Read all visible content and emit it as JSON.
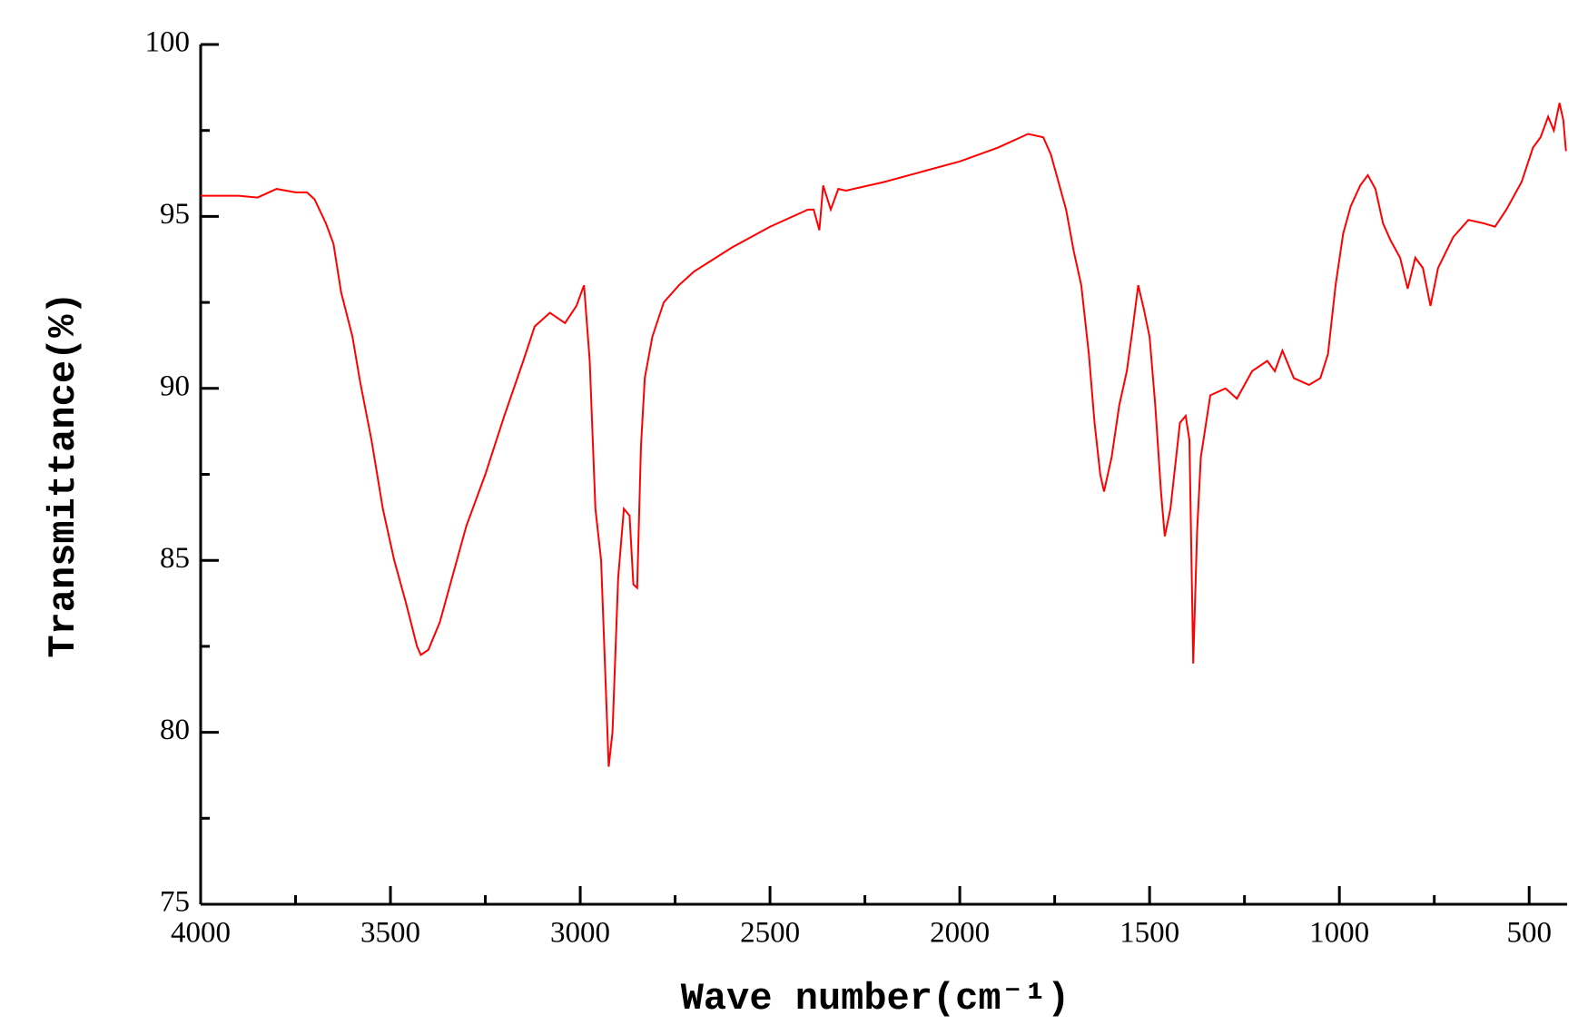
{
  "chart_data": {
    "type": "line",
    "xlabel": "Wave number(cm⁻¹)",
    "ylabel": "Transmittance(%)",
    "xlim": [
      4000,
      400
    ],
    "ylim": [
      75,
      100
    ],
    "xticks": [
      4000,
      3500,
      3000,
      2500,
      2000,
      1500,
      1000,
      500
    ],
    "xminor": [
      3750,
      3250,
      2750,
      2250,
      1750,
      1250,
      750
    ],
    "yticks": [
      75,
      80,
      85,
      90,
      95,
      100
    ],
    "yminor": [
      77.5,
      82.5,
      87.5,
      92.5,
      97.5
    ],
    "series": [
      {
        "name": null,
        "color": "#ff0000",
        "x": [
          4000,
          3900,
          3850,
          3800,
          3750,
          3720,
          3700,
          3670,
          3650,
          3630,
          3600,
          3580,
          3550,
          3520,
          3490,
          3460,
          3430,
          3420,
          3400,
          3370,
          3330,
          3300,
          3250,
          3200,
          3150,
          3120,
          3080,
          3040,
          3010,
          2990,
          2975,
          2960,
          2945,
          2935,
          2925,
          2915,
          2900,
          2885,
          2870,
          2860,
          2850,
          2840,
          2830,
          2810,
          2780,
          2740,
          2700,
          2600,
          2500,
          2400,
          2385,
          2370,
          2360,
          2340,
          2320,
          2300,
          2200,
          2100,
          2000,
          1900,
          1820,
          1780,
          1760,
          1740,
          1720,
          1700,
          1680,
          1660,
          1645,
          1630,
          1620,
          1600,
          1580,
          1560,
          1545,
          1530,
          1515,
          1500,
          1485,
          1470,
          1460,
          1445,
          1430,
          1420,
          1405,
          1395,
          1385,
          1375,
          1365,
          1340,
          1300,
          1270,
          1230,
          1190,
          1170,
          1150,
          1120,
          1080,
          1050,
          1030,
          1010,
          990,
          970,
          945,
          925,
          905,
          885,
          865,
          840,
          820,
          800,
          780,
          760,
          740,
          700,
          660,
          620,
          590,
          560,
          520,
          490,
          470,
          450,
          435,
          420,
          410,
          403
        ],
        "values": [
          95.6,
          95.6,
          95.55,
          95.8,
          95.7,
          95.7,
          95.5,
          94.8,
          94.2,
          92.8,
          91.5,
          90.2,
          88.5,
          86.5,
          85,
          83.8,
          82.5,
          82.25,
          82.4,
          83.2,
          84.8,
          86,
          87.5,
          89.2,
          90.8,
          91.8,
          92.2,
          91.9,
          92.4,
          93,
          90.8,
          86.5,
          85,
          82,
          79,
          80,
          84.5,
          86.5,
          86.3,
          84.3,
          84.2,
          88.3,
          90.3,
          91.5,
          92.5,
          93,
          93.4,
          94.1,
          94.7,
          95.2,
          95.2,
          94.6,
          95.9,
          95.2,
          95.8,
          95.75,
          96,
          96.3,
          96.6,
          97,
          97.4,
          97.3,
          96.8,
          96,
          95.2,
          94,
          93,
          91,
          89,
          87.5,
          87,
          88,
          89.5,
          90.5,
          91.7,
          93,
          92.3,
          91.5,
          89.5,
          87,
          85.7,
          86.5,
          88,
          89,
          89.2,
          88.5,
          82,
          85.8,
          88,
          89.8,
          90,
          89.7,
          90.5,
          90.8,
          90.5,
          91.1,
          90.3,
          90.1,
          90.3,
          91,
          93,
          94.5,
          95.3,
          95.9,
          96.2,
          95.8,
          94.8,
          94.3,
          93.8,
          92.9,
          93.8,
          93.5,
          92.4,
          93.5,
          94.4,
          94.9,
          94.8,
          94.7,
          95.2,
          96,
          97,
          97.3,
          97.9,
          97.5,
          98.3,
          97.8,
          96.9
        ]
      }
    ]
  }
}
